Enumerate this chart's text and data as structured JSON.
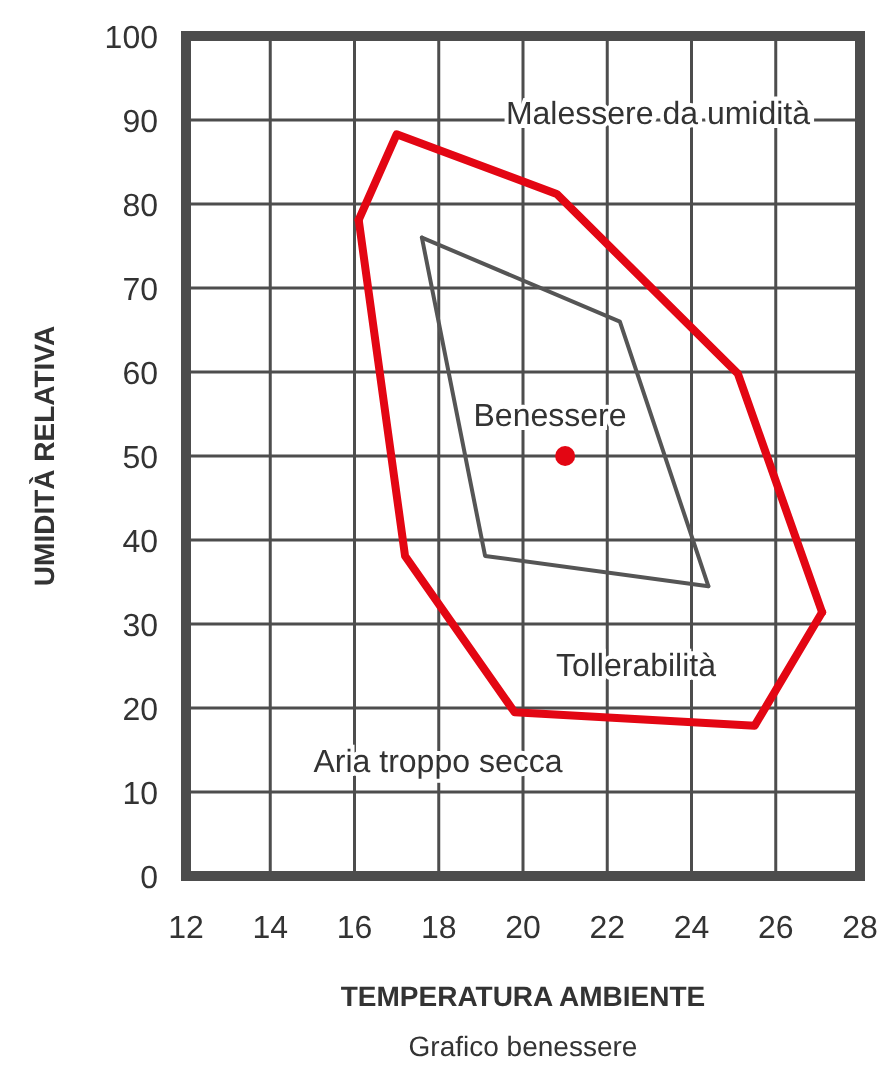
{
  "chart_data": {
    "type": "line",
    "xlabel": "TEMPERATURA AMBIENTE",
    "ylabel": "UMIDITÀ RELATIVA",
    "xlim": [
      12,
      28
    ],
    "xticks": [
      12,
      14,
      16,
      18,
      20,
      22,
      24,
      26,
      28
    ],
    "ylim": [
      0,
      100
    ],
    "yticks": [
      0,
      10,
      20,
      30,
      40,
      50,
      60,
      70,
      80,
      90,
      100
    ],
    "grid": true,
    "series": [
      {
        "color": "#e30613",
        "x": [
          16.1,
          17.0,
          20.8,
          25.1,
          27.1
        ],
        "values": [
          78.1,
          88.3,
          81.2,
          59.8,
          31.4
        ]
      },
      {
        "color": "#e30613",
        "x": [
          16.1,
          17.2,
          19.8,
          25.5,
          27.1
        ],
        "values": [
          78.1,
          38.1,
          19.5,
          17.9,
          31.4
        ]
      },
      {
        "color": "#555555",
        "x": [
          17.6,
          22.3,
          24.4
        ],
        "values": [
          76,
          66,
          34.5
        ]
      },
      {
        "color": "#555555",
        "x": [
          17.6,
          19.1,
          24.4
        ],
        "values": [
          76,
          38.1,
          34.5
        ]
      },
      {
        "type": "scatter",
        "color": "#e30613",
        "marker": "circle",
        "x": [
          21
        ],
        "values": [
          50
        ]
      }
    ],
    "annotations": [
      "Malessere da umidità",
      "Benessere",
      "Tollerabilità",
      "Aria troppo secca",
      "Grafico benessere"
    ]
  }
}
